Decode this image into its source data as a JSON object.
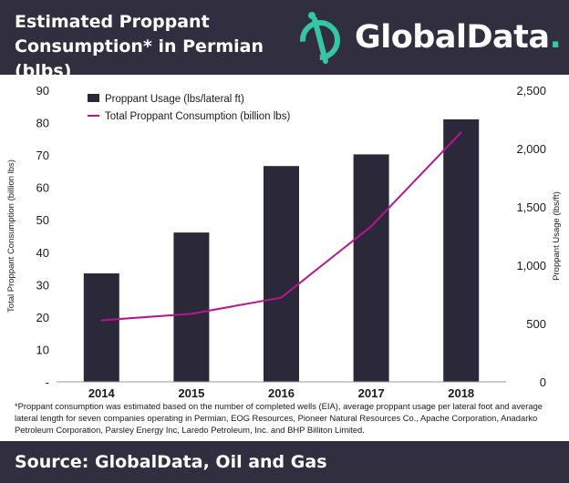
{
  "header": {
    "title_line1": "Estimated Proppant",
    "title_line2": "Consumption* in Permian (blbs)"
  },
  "brand": {
    "name": "GlobalData",
    "dot": ".",
    "accent_color": "#35c7a4",
    "logo_icon": "globaldata-logo-icon"
  },
  "chart_data": {
    "type": "bar",
    "categories": [
      "2014",
      "2015",
      "2016",
      "2017",
      "2018"
    ],
    "series": [
      {
        "name": "Proppant Usage (lbs/lateral ft)",
        "type": "bar",
        "axis": "right",
        "color": "#2b2839",
        "values": [
          930,
          1280,
          1850,
          1950,
          2250
        ]
      },
      {
        "name": "Total Proppant Consumption (billion lbs)",
        "type": "line",
        "axis": "left",
        "color": "#b5178f",
        "values": [
          19,
          21,
          26,
          48,
          77
        ]
      }
    ],
    "y_left": {
      "label": "Total Proppant Consumption (billion lbs)",
      "ticks": [
        0,
        10,
        20,
        30,
        40,
        50,
        60,
        70,
        80,
        90
      ],
      "tick_labels": [
        "-",
        "10",
        "20",
        "30",
        "40",
        "50",
        "60",
        "70",
        "80",
        "90"
      ],
      "range": [
        0,
        90
      ]
    },
    "y_right": {
      "label": "Proppant Usage (lbs/ft)",
      "ticks": [
        0,
        500,
        1000,
        1500,
        2000,
        2500
      ],
      "tick_labels": [
        "0",
        "500",
        "1,000",
        "1,500",
        "2,000",
        "2,500"
      ],
      "range": [
        0,
        2500
      ]
    },
    "legend_position": "top-left",
    "grid": false
  },
  "footnote": "*Proppant consumption was estimated based on the number of completed wells (EIA), average proppant usage per lateral foot and average lateral length for seven companies operating in Permian, EOG Resources, Pioneer Natural Resources Co., Apache Corporation, Anadarko Petroleum Corporation, Parsley Energy Inc, Laredo Petroleum, Inc. and BHP Billiton Limited.",
  "footer": {
    "source": "Source: GlobalData, Oil and Gas"
  }
}
